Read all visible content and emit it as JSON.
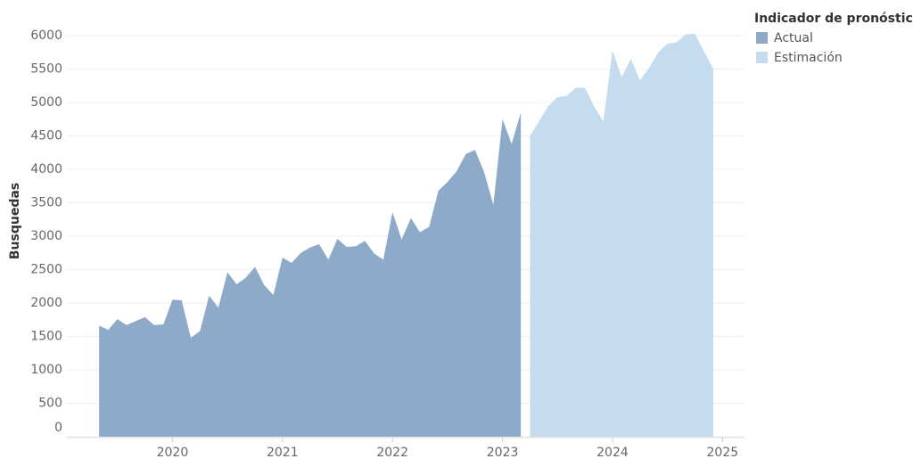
{
  "chart_data": {
    "type": "area",
    "y_label": "Busquedas",
    "legend_title": "Indicador de pronóstico",
    "legend_position": "right",
    "grid": true,
    "xlim": [
      2019.04,
      2025.2
    ],
    "xticks": [
      2020,
      2021,
      2022,
      2023,
      2024,
      2025
    ],
    "ylim": [
      0,
      6400
    ],
    "yticks": [
      0,
      500,
      1000,
      1500,
      2000,
      2500,
      3000,
      3500,
      4000,
      4500,
      5000,
      5500,
      6000
    ],
    "x": [
      2019.333,
      2019.417,
      2019.5,
      2019.583,
      2019.667,
      2019.75,
      2019.833,
      2019.917,
      2020,
      2020.083,
      2020.167,
      2020.25,
      2020.333,
      2020.417,
      2020.5,
      2020.583,
      2020.667,
      2020.75,
      2020.833,
      2020.917,
      2021,
      2021.083,
      2021.167,
      2021.25,
      2021.333,
      2021.417,
      2021.5,
      2021.583,
      2021.667,
      2021.75,
      2021.833,
      2021.917,
      2022,
      2022.083,
      2022.167,
      2022.25,
      2022.333,
      2022.417,
      2022.5,
      2022.583,
      2022.667,
      2022.75,
      2022.833,
      2022.917,
      2023,
      2023.083,
      2023.167,
      2023.25,
      2023.333,
      2023.417,
      2023.5,
      2023.583,
      2023.667,
      2023.75,
      2023.833,
      2023.917,
      2024,
      2024.083,
      2024.167,
      2024.25,
      2024.333,
      2024.417,
      2024.5,
      2024.583,
      2024.667,
      2024.75,
      2024.833,
      2024.917
    ],
    "series": [
      {
        "name": "Actual",
        "color": "#8eaac9",
        "values": [
          1660,
          1600,
          1760,
          1670,
          1730,
          1790,
          1670,
          1680,
          2050,
          2040,
          1480,
          1580,
          2110,
          1930,
          2460,
          2280,
          2380,
          2540,
          2270,
          2120,
          2680,
          2600,
          2750,
          2830,
          2880,
          2650,
          2960,
          2840,
          2850,
          2930,
          2740,
          2650,
          3360,
          2950,
          3270,
          3060,
          3140,
          3680,
          3810,
          3970,
          4230,
          4290,
          3960,
          3470,
          4750,
          4380,
          4850,
          null,
          null,
          null,
          null,
          null,
          null,
          null,
          null,
          null,
          null,
          null,
          null,
          null,
          null,
          null,
          null,
          null,
          null,
          null,
          null,
          null
        ]
      },
      {
        "name": "Estimación",
        "color": "#c4dcee",
        "values": [
          null,
          null,
          null,
          null,
          null,
          null,
          null,
          null,
          null,
          null,
          null,
          null,
          null,
          null,
          null,
          null,
          null,
          null,
          null,
          null,
          null,
          null,
          null,
          null,
          null,
          null,
          null,
          null,
          null,
          null,
          null,
          null,
          null,
          null,
          null,
          null,
          null,
          null,
          null,
          null,
          null,
          null,
          null,
          null,
          null,
          null,
          null,
          4500,
          4720,
          4950,
          5080,
          5100,
          5220,
          5220,
          4940,
          4720,
          5780,
          5380,
          5650,
          5330,
          5520,
          5750,
          5880,
          5900,
          6020,
          6030,
          5760,
          5500
        ]
      }
    ]
  }
}
